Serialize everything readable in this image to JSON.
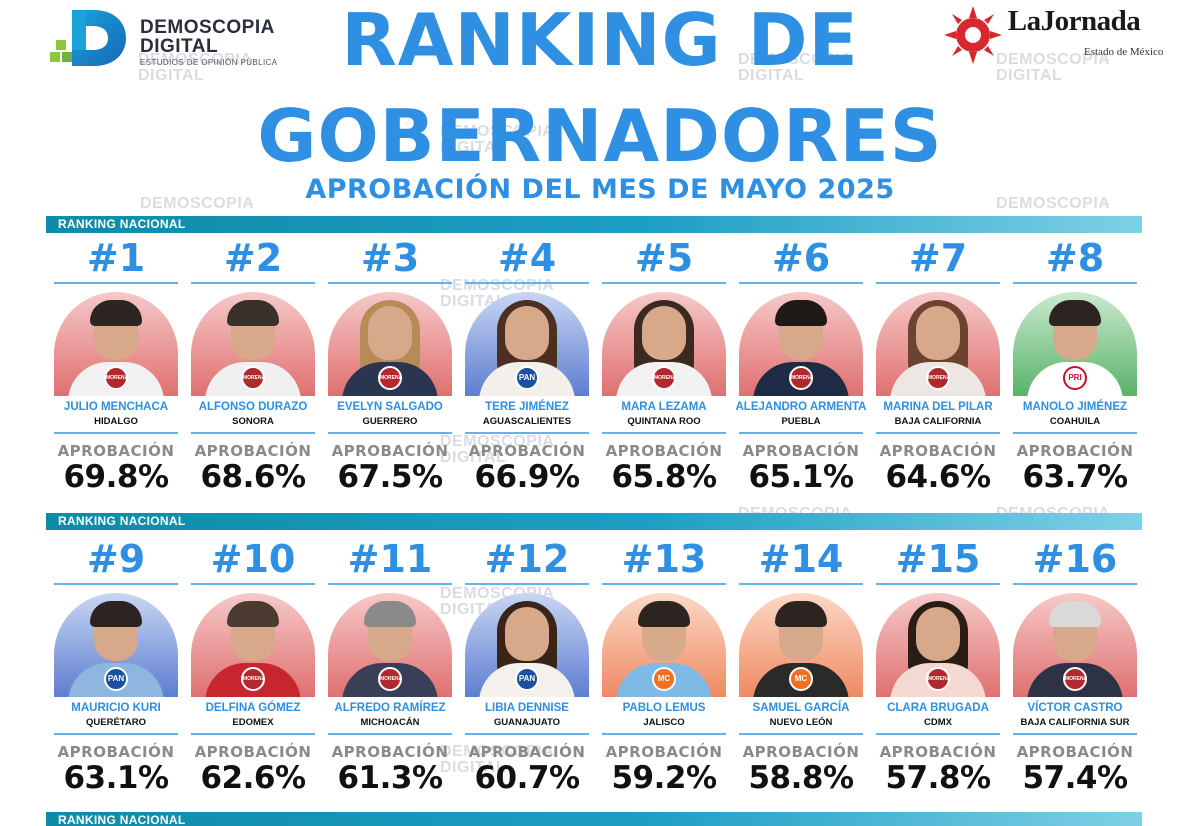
{
  "header": {
    "title_line1": "RANKING DE",
    "title_line2": "GOBERNADORES",
    "subtitle": "APROBACIÓN DEL MES DE MAYO 2025",
    "logo_left": {
      "line1": "DEMOSCOPIA",
      "line2": "DIGITAL",
      "tagline": "ESTUDIOS DE OPINIÓN PÚBLICA"
    },
    "logo_right": {
      "name": "LaJornada",
      "sub": "Estado de México"
    }
  },
  "watermark": {
    "line1": "DEMOSCOPIA",
    "line2": "DIGITAL"
  },
  "section_label": "RANKING NACIONAL",
  "approval_label": "APROBACIÓN",
  "party_labels": {
    "morena": "MORENA",
    "pan": "PAN",
    "pri": "PRI",
    "mc": "MC"
  },
  "colors": {
    "accent_blue": "#2e8fe3",
    "bar_teal": "#0d8ba8",
    "morena_red": "#b3282d",
    "pan_blue": "#1b4fa0",
    "pri_green": "#2f9e48",
    "mc_orange": "#f37021"
  },
  "rows": [
    {
      "governors": [
        {
          "rank": "#1",
          "name": "JULIO MENCHACA",
          "state": "HIDALGO",
          "approval": "69.8%",
          "party": "morena"
        },
        {
          "rank": "#2",
          "name": "ALFONSO DURAZO",
          "state": "SONORA",
          "approval": "68.6%",
          "party": "morena"
        },
        {
          "rank": "#3",
          "name": "EVELYN SALGADO",
          "state": "GUERRERO",
          "approval": "67.5%",
          "party": "morena"
        },
        {
          "rank": "#4",
          "name": "TERE JIMÉNEZ",
          "state": "AGUASCALIENTES",
          "approval": "66.9%",
          "party": "pan"
        },
        {
          "rank": "#5",
          "name": "MARA LEZAMA",
          "state": "QUINTANA ROO",
          "approval": "65.8%",
          "party": "morena"
        },
        {
          "rank": "#6",
          "name": "ALEJANDRO ARMENTA",
          "state": "PUEBLA",
          "approval": "65.1%",
          "party": "morena"
        },
        {
          "rank": "#7",
          "name": "MARINA DEL PILAR",
          "state": "BAJA CALIFORNIA",
          "approval": "64.6%",
          "party": "morena"
        },
        {
          "rank": "#8",
          "name": "MANOLO JIMÉNEZ",
          "state": "COAHUILA",
          "approval": "63.7%",
          "party": "pri"
        }
      ]
    },
    {
      "governors": [
        {
          "rank": "#9",
          "name": "MAURICIO KURI",
          "state": "QUERÉTARO",
          "approval": "63.1%",
          "party": "pan"
        },
        {
          "rank": "#10",
          "name": "DELFINA GÓMEZ",
          "state": "EDOMEX",
          "approval": "62.6%",
          "party": "morena"
        },
        {
          "rank": "#11",
          "name": "ALFREDO RAMÍREZ",
          "state": "MICHOACÁN",
          "approval": "61.3%",
          "party": "morena"
        },
        {
          "rank": "#12",
          "name": "LIBIA DENNISE",
          "state": "GUANAJUATO",
          "approval": "60.7%",
          "party": "pan"
        },
        {
          "rank": "#13",
          "name": "PABLO LEMUS",
          "state": "JALISCO",
          "approval": "59.2%",
          "party": "mc"
        },
        {
          "rank": "#14",
          "name": "SAMUEL GARCÍA",
          "state": "NUEVO LEÓN",
          "approval": "58.8%",
          "party": "mc"
        },
        {
          "rank": "#15",
          "name": "CLARA BRUGADA",
          "state": "CDMX",
          "approval": "57.8%",
          "party": "morena"
        },
        {
          "rank": "#16",
          "name": "VÍCTOR CASTRO",
          "state": "BAJA CALIFORNIA SUR",
          "approval": "57.4%",
          "party": "morena"
        }
      ]
    }
  ]
}
